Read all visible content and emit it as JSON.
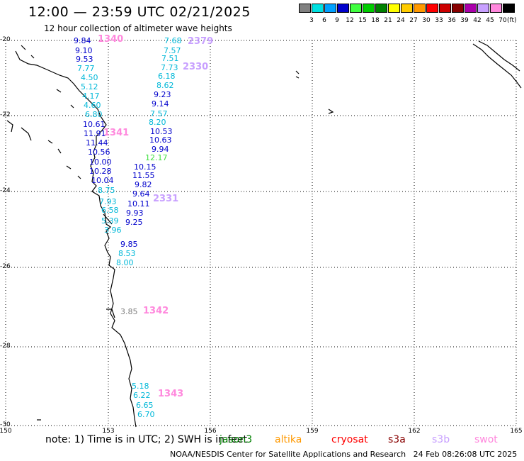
{
  "title": "12:00 — 23:59 UTC 02/21/2025",
  "subtitle": "12 hour collection of altimeter wave heights",
  "legend": {
    "unit": "(ft)",
    "bins": [
      {
        "label": "3",
        "color": "#808080"
      },
      {
        "label": "6",
        "color": "#00e0e0"
      },
      {
        "label": "9",
        "color": "#00a0ff"
      },
      {
        "label": "12",
        "color": "#0000cc"
      },
      {
        "label": "15",
        "color": "#40ff40"
      },
      {
        "label": "18",
        "color": "#00cc00"
      },
      {
        "label": "21",
        "color": "#008000"
      },
      {
        "label": "24",
        "color": "#ffff00"
      },
      {
        "label": "27",
        "color": "#ffcc00"
      },
      {
        "label": "30",
        "color": "#ff9900"
      },
      {
        "label": "33",
        "color": "#ff0000"
      },
      {
        "label": "36",
        "color": "#cc0000"
      },
      {
        "label": "39",
        "color": "#880000"
      },
      {
        "label": "42",
        "color": "#aa00aa"
      },
      {
        "label": "45",
        "color": "#c8a0ff"
      },
      {
        "label": "70",
        "color": "#ff88dd"
      },
      {
        "label": "",
        "color": "#000000"
      }
    ]
  },
  "axes": {
    "lat_labels": [
      "-20",
      "-22",
      "-24",
      "-26",
      "-28",
      "-30"
    ],
    "lon_labels": [
      "150",
      "153",
      "156",
      "159",
      "162",
      "165"
    ]
  },
  "passes": [
    {
      "id": "1340",
      "color": "#ff88dd"
    },
    {
      "id": "2379",
      "color": "#c8a0ff"
    },
    {
      "id": "2330",
      "color": "#c8a0ff"
    },
    {
      "id": "1341",
      "color": "#ff88dd"
    },
    {
      "id": "2331",
      "color": "#c8a0ff"
    },
    {
      "id": "1342",
      "color": "#ff88dd"
    },
    {
      "id": "1343",
      "color": "#ff88dd"
    }
  ],
  "tracks": {
    "track_a": [
      "9.84",
      "9.10",
      "9.53",
      "7.77",
      "4.50",
      "5.12",
      "4.17",
      "4.60",
      "6.80",
      "10.61",
      "11.91",
      "11.44",
      "10.56",
      "10.00",
      "10.28",
      "10.04",
      "8.75",
      "7.93",
      "6.58",
      "5.39",
      "3.96"
    ],
    "track_b": [
      "7.68",
      "7.57",
      "7.51",
      "7.73",
      "6.18",
      "8.62",
      "9.23",
      "9.14",
      "7.57",
      "8.20",
      "10.53",
      "10.63",
      "9.94",
      "12.17",
      "10.15",
      "11.55",
      "9.82",
      "9.64",
      "10.11",
      "9.93",
      "9.25"
    ],
    "track_c": [
      "9.85",
      "8.53",
      "8.00"
    ],
    "track_d": [
      "3.85"
    ],
    "track_e": [
      "5.18",
      "6.22",
      "6.65",
      "6.70"
    ]
  },
  "footer": {
    "note": "note:  1) Time is in UTC;  2) SWH is in feet",
    "satellites": [
      {
        "name": "jason3",
        "color": "#008000"
      },
      {
        "name": "altika",
        "color": "#ff9900"
      },
      {
        "name": "cryosat",
        "color": "#ff0000"
      },
      {
        "name": "s3a",
        "color": "#880000"
      },
      {
        "name": "s3b",
        "color": "#c8a0ff"
      },
      {
        "name": "swot",
        "color": "#ff88dd"
      }
    ],
    "credit": "NOAA/NESDIS Center for Satellite Applications and Research",
    "timestamp": "24 Feb 08:26:08 UTC 2025"
  }
}
